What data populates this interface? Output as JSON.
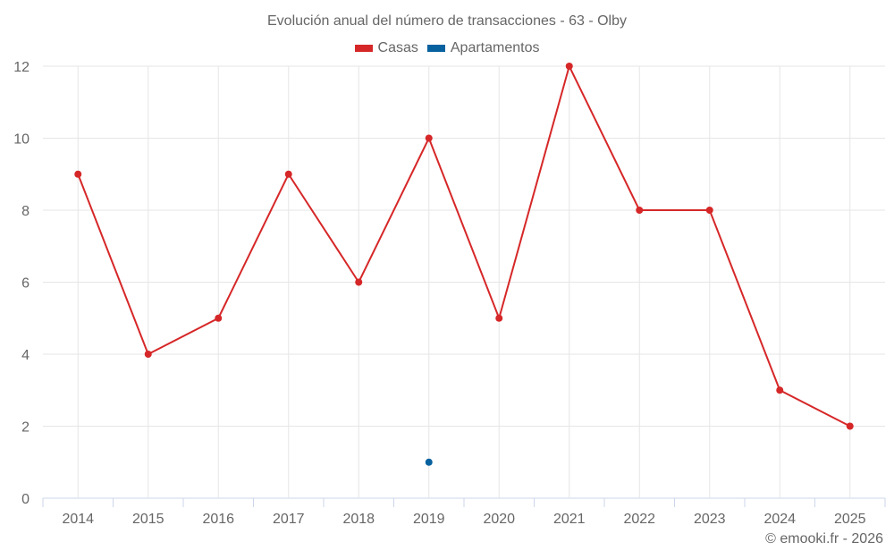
{
  "chart_data": {
    "type": "line",
    "title": "Evolución anual del número de transacciones - 63 - Olby",
    "xlabel": "",
    "ylabel": "",
    "categories": [
      "2014",
      "2015",
      "2016",
      "2017",
      "2018",
      "2019",
      "2020",
      "2021",
      "2022",
      "2023",
      "2024",
      "2025"
    ],
    "series": [
      {
        "name": "Casas",
        "color": "#d62728",
        "values": [
          9,
          4,
          5,
          9,
          6,
          10,
          5,
          12,
          8,
          8,
          3,
          2
        ]
      },
      {
        "name": "Apartamentos",
        "color": "#08619f",
        "values": [
          null,
          null,
          null,
          null,
          null,
          1,
          null,
          null,
          null,
          null,
          null,
          null
        ]
      }
    ],
    "ylim": [
      0,
      12
    ],
    "yticks": [
      0,
      2,
      4,
      6,
      8,
      10,
      12
    ],
    "grid": true,
    "legend_position": "top"
  },
  "header": {
    "title": "Evolución anual del número de transacciones - 63 - Olby"
  },
  "legend": {
    "items": [
      {
        "label": "Casas",
        "color": "#d62728"
      },
      {
        "label": "Apartamentos",
        "color": "#08619f"
      }
    ]
  },
  "footer": {
    "credit": "© emooki.fr - 2026"
  }
}
